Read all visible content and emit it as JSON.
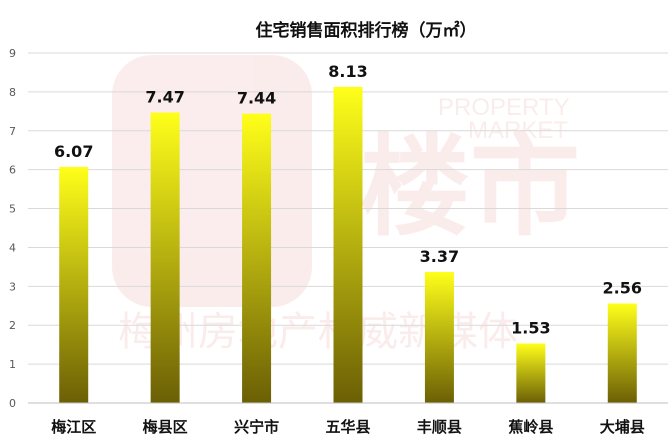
{
  "title": "住宅销售面积排行榜（万㎡）",
  "watermark": {
    "brand_en_line1": "PROPERTY",
    "brand_en_line2": "MARKET",
    "brand_cn": "楼市",
    "tagline": "梅州房地产权威新媒体",
    "color": "#d83a3a"
  },
  "colors": {
    "bar_top": "#ffff1a",
    "bar_bottom": "#6b5f05",
    "grid": "#d9d9d9",
    "axis": "#bfbfbf"
  },
  "chart_data": {
    "type": "bar",
    "title": "住宅销售面积排行榜（万㎡）",
    "categories": [
      "梅江区",
      "梅县区",
      "兴宁市",
      "五华县",
      "丰顺县",
      "蕉岭县",
      "大埔县"
    ],
    "values": [
      6.07,
      7.47,
      7.44,
      8.13,
      3.37,
      1.53,
      2.56
    ],
    "data_labels": [
      "6.07",
      "7.47",
      "7.44",
      "8.13",
      "3.37",
      "1.53",
      "2.56"
    ],
    "y_ticks": [
      "0",
      "1",
      "2",
      "3",
      "4",
      "5",
      "6",
      "7",
      "8",
      "9"
    ],
    "ylim": [
      0,
      9
    ],
    "grid": true,
    "legend": "none",
    "xlabel": "",
    "ylabel": ""
  }
}
